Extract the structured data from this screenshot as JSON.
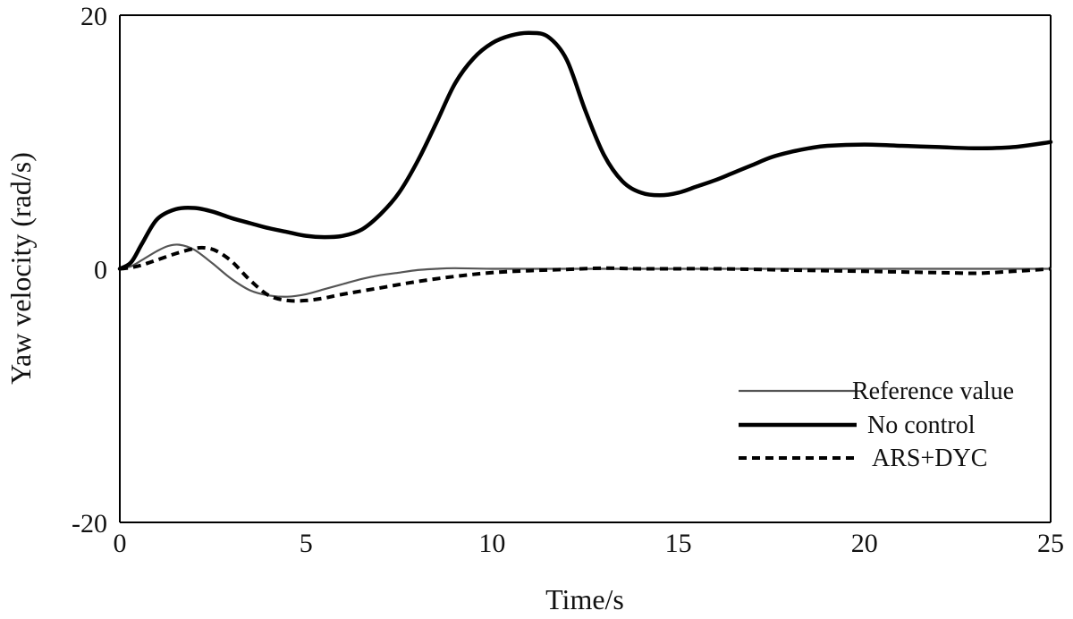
{
  "chart_data": {
    "type": "line",
    "title": "",
    "xlabel": "Time/s",
    "ylabel": "Yaw velocity (rad/s)",
    "xlim": [
      0,
      25
    ],
    "ylim": [
      -20,
      20
    ],
    "xticks": [
      0,
      5,
      10,
      15,
      20,
      25
    ],
    "yticks": [
      -20,
      0,
      20
    ],
    "grid": false,
    "legend_position": "bottom-right",
    "series": [
      {
        "name": "Reference value",
        "style": "thin-solid",
        "color": "#555555",
        "x": [
          0,
          0.3,
          0.6,
          1.0,
          1.3,
          1.6,
          2.0,
          2.5,
          3.0,
          3.5,
          4.0,
          4.5,
          5.0,
          5.5,
          6.0,
          6.5,
          7.0,
          7.5,
          8.0,
          8.5,
          9.0,
          10.0,
          12.0,
          15.0,
          18.0,
          20.0,
          22.0,
          25.0
        ],
        "values": [
          0,
          0.2,
          0.7,
          1.4,
          1.8,
          1.9,
          1.5,
          0.4,
          -0.8,
          -1.7,
          -2.1,
          -2.2,
          -2.0,
          -1.6,
          -1.2,
          -0.8,
          -0.5,
          -0.3,
          -0.1,
          0.0,
          0.05,
          0.0,
          0.0,
          0.0,
          0.0,
          0.0,
          0.0,
          0.0
        ]
      },
      {
        "name": "No control",
        "style": "thick-solid",
        "color": "#000000",
        "x": [
          0,
          0.3,
          0.6,
          1.0,
          1.5,
          2.0,
          2.5,
          3.0,
          3.5,
          4.0,
          4.5,
          5.0,
          5.5,
          6.0,
          6.5,
          7.0,
          7.5,
          8.0,
          8.5,
          9.0,
          9.5,
          10.0,
          10.5,
          11.0,
          11.5,
          12.0,
          12.5,
          13.0,
          13.5,
          14.0,
          14.5,
          15.0,
          15.5,
          16.0,
          16.5,
          17.0,
          17.5,
          18.0,
          18.5,
          19.0,
          20.0,
          21.0,
          22.0,
          23.0,
          24.0,
          25.0
        ],
        "values": [
          0,
          0.5,
          2.0,
          3.9,
          4.7,
          4.8,
          4.5,
          4.0,
          3.6,
          3.2,
          2.9,
          2.6,
          2.5,
          2.6,
          3.1,
          4.3,
          6.0,
          8.5,
          11.5,
          14.6,
          16.6,
          17.8,
          18.4,
          18.6,
          18.3,
          16.5,
          12.5,
          9.0,
          6.9,
          6.0,
          5.8,
          6.0,
          6.5,
          7.0,
          7.6,
          8.2,
          8.8,
          9.2,
          9.5,
          9.7,
          9.8,
          9.7,
          9.6,
          9.5,
          9.6,
          10.0
        ]
      },
      {
        "name": "ARS+DYC",
        "style": "dashed",
        "color": "#000000",
        "x": [
          0,
          0.3,
          0.6,
          1.0,
          1.5,
          2.0,
          2.3,
          2.6,
          3.0,
          3.5,
          4.0,
          4.5,
          5.0,
          5.5,
          6.0,
          7.0,
          8.0,
          9.0,
          10.0,
          11.0,
          12.0,
          13.0,
          14.0,
          16.0,
          18.0,
          20.0,
          22.0,
          23.0,
          24.0,
          25.0
        ],
        "values": [
          0,
          0.1,
          0.3,
          0.7,
          1.2,
          1.6,
          1.65,
          1.4,
          0.6,
          -0.9,
          -2.1,
          -2.5,
          -2.5,
          -2.3,
          -2.0,
          -1.5,
          -1.0,
          -0.6,
          -0.3,
          -0.15,
          -0.05,
          0.05,
          0.0,
          0.0,
          -0.1,
          -0.2,
          -0.3,
          -0.35,
          -0.2,
          0.0
        ]
      }
    ]
  }
}
